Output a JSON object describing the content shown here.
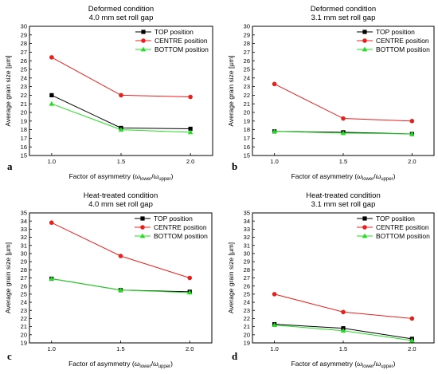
{
  "colors": {
    "top": "#000000",
    "centre": "#e8201c",
    "bottom": "#22dd22"
  },
  "chart_data": [
    {
      "type": "line",
      "panel_label": "a",
      "title": "Deformed condition",
      "subtitle": "4.0 mm set roll gap",
      "xlabel_main": "Factor of asymmetry (",
      "xlabel_sym1": "ω",
      "xlabel_sub1": "lower",
      "xlabel_slash": "/",
      "xlabel_sym2": "ω",
      "xlabel_sub2": "upper",
      "xlabel_close": ")",
      "ylabel": "Average grain size [µm]",
      "x": [
        1.0,
        1.5,
        2.0
      ],
      "x_ticks": [
        "1.0",
        "1.5",
        "2.0"
      ],
      "ylim": [
        15,
        30
      ],
      "y_ticks": [
        "15",
        "16",
        "17",
        "18",
        "19",
        "20",
        "21",
        "22",
        "23",
        "24",
        "25",
        "26",
        "27",
        "28",
        "29",
        "30"
      ],
      "legend_position": "top-right",
      "series": [
        {
          "name": "TOP position",
          "marker": "square",
          "values": [
            22.0,
            18.2,
            18.1
          ]
        },
        {
          "name": "CENTRE position",
          "marker": "circle",
          "values": [
            26.4,
            22.0,
            21.8
          ]
        },
        {
          "name": "BOTTOM position",
          "marker": "triangle",
          "values": [
            21.0,
            18.0,
            17.7
          ]
        }
      ]
    },
    {
      "type": "line",
      "panel_label": "b",
      "title": "Deformed condition",
      "subtitle": "3.1 mm set roll gap",
      "xlabel_main": "Factor of asymmetry (",
      "xlabel_sym1": "ω",
      "xlabel_sub1": "lower",
      "xlabel_slash": "/",
      "xlabel_sym2": "ω",
      "xlabel_sub2": "upper",
      "xlabel_close": ")",
      "ylabel": "Average grain size [µm]",
      "x": [
        1.0,
        1.5,
        2.0
      ],
      "x_ticks": [
        "1.0",
        "1.5",
        "2.0"
      ],
      "ylim": [
        15,
        30
      ],
      "y_ticks": [
        "15",
        "16",
        "17",
        "18",
        "19",
        "20",
        "21",
        "22",
        "23",
        "24",
        "25",
        "26",
        "27",
        "28",
        "29",
        "30"
      ],
      "legend_position": "top-right",
      "series": [
        {
          "name": "TOP position",
          "marker": "square",
          "values": [
            17.8,
            17.7,
            17.5
          ]
        },
        {
          "name": "CENTRE position",
          "marker": "circle",
          "values": [
            23.3,
            19.3,
            19.0
          ]
        },
        {
          "name": "BOTTOM position",
          "marker": "triangle",
          "values": [
            17.8,
            17.6,
            17.5
          ]
        }
      ]
    },
    {
      "type": "line",
      "panel_label": "c",
      "title": "Heat-treated condition",
      "subtitle": "4.0 mm set roll gap",
      "xlabel_main": "Factor of asymmetry (",
      "xlabel_sym1": "ω",
      "xlabel_sub1": "lower",
      "xlabel_slash": "/",
      "xlabel_sym2": "ω",
      "xlabel_sub2": "upper",
      "xlabel_close": ")",
      "ylabel": "Average grain size [µm]",
      "x": [
        1.0,
        1.5,
        2.0
      ],
      "x_ticks": [
        "1.0",
        "1.5",
        "2.0"
      ],
      "ylim": [
        19,
        35
      ],
      "y_ticks": [
        "19",
        "20",
        "21",
        "22",
        "23",
        "24",
        "25",
        "26",
        "27",
        "28",
        "29",
        "30",
        "31",
        "32",
        "33",
        "34",
        "35"
      ],
      "legend_position": "top-right",
      "series": [
        {
          "name": "TOP position",
          "marker": "square",
          "values": [
            26.9,
            25.5,
            25.3
          ]
        },
        {
          "name": "CENTRE position",
          "marker": "circle",
          "values": [
            33.8,
            29.7,
            27.0
          ]
        },
        {
          "name": "BOTTOM position",
          "marker": "triangle",
          "values": [
            26.9,
            25.5,
            25.2
          ]
        }
      ]
    },
    {
      "type": "line",
      "panel_label": "d",
      "title": "Heat-treated condition",
      "subtitle": "3.1 mm set roll gap",
      "xlabel_main": "Factor of asymmetry (",
      "xlabel_sym1": "ω",
      "xlabel_sub1": "lower",
      "xlabel_slash": "/",
      "xlabel_sym2": "ω",
      "xlabel_sub2": "upper",
      "xlabel_close": ")",
      "ylabel": "Average grain size [µm]",
      "x": [
        1.0,
        1.5,
        2.0
      ],
      "x_ticks": [
        "1.0",
        "1.5",
        "2.0"
      ],
      "ylim": [
        19,
        35
      ],
      "y_ticks": [
        "19",
        "20",
        "21",
        "22",
        "23",
        "24",
        "25",
        "26",
        "27",
        "28",
        "29",
        "30",
        "31",
        "32",
        "33",
        "34",
        "35"
      ],
      "legend_position": "top-right",
      "series": [
        {
          "name": "TOP position",
          "marker": "square",
          "values": [
            21.3,
            20.8,
            19.5
          ]
        },
        {
          "name": "CENTRE position",
          "marker": "circle",
          "values": [
            25.0,
            22.8,
            22.0
          ]
        },
        {
          "name": "BOTTOM position",
          "marker": "triangle",
          "values": [
            21.2,
            20.5,
            19.3
          ]
        }
      ]
    }
  ]
}
